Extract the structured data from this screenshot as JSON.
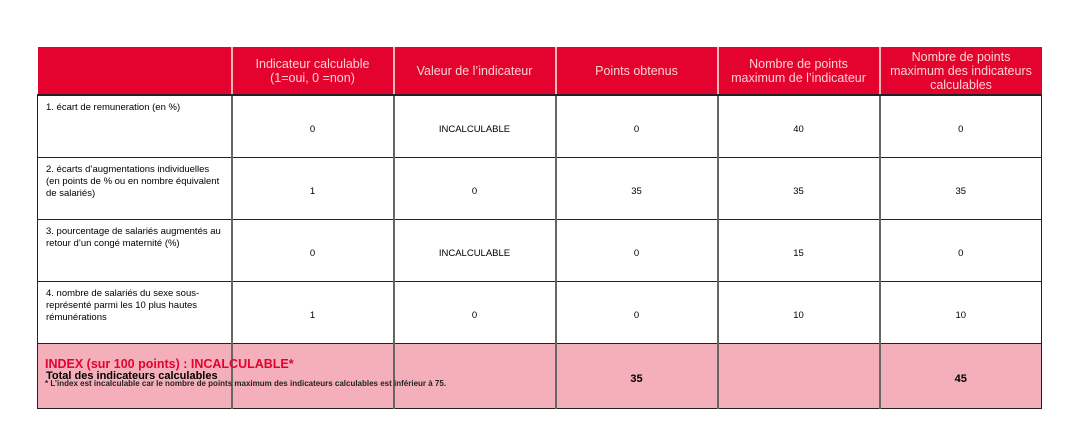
{
  "colors": {
    "header": "#e4032e",
    "total": "#f5afba",
    "index_text": "#e4032e"
  },
  "headers": [
    "",
    "Indicateur calculable (1=oui, 0 =non)",
    "Valeur de l’indicateur",
    "Points obtenus",
    "Nombre de points maximum de l’indicateur",
    "Nombre de points maximum des indicateurs calculables"
  ],
  "rows": [
    {
      "label": "1. écart de remuneration (en %)",
      "c1": "0",
      "c2": "INCALCULABLE",
      "c3": "0",
      "c4": "40",
      "c5": "0"
    },
    {
      "label": "2. écarts d’augmentations individuelles (en points de % ou en nombre équivalent de salariés)",
      "c1": "1",
      "c2": "0",
      "c3": "35",
      "c4": "35",
      "c5": "35"
    },
    {
      "label": "3. pourcentage de salariés augmentés au retour d’un congé maternité (%)",
      "c1": "0",
      "c2": "INCALCULABLE",
      "c3": "0",
      "c4": "15",
      "c5": "0"
    },
    {
      "label": "4. nombre de salariés du sexe sous-représenté parmi les 10 plus hautes rémunérations",
      "c1": "1",
      "c2": "0",
      "c3": "0",
      "c4": "10",
      "c5": "10"
    }
  ],
  "total": {
    "label": "Total des indicateurs calculables",
    "c1": "",
    "c2": "",
    "c3": "35",
    "c4": "",
    "c5": "45"
  },
  "index": "INDEX (sur 100 points) : INCALCULABLE*",
  "note": "* L’index est incalculable car le nombre de points maximum des indicateurs calculables est inférieur à 75."
}
